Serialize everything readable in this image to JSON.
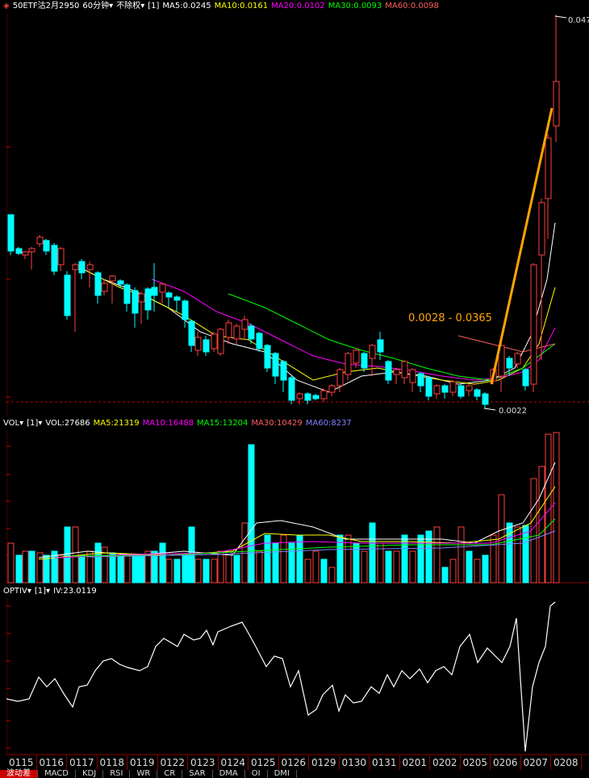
{
  "main_header": {
    "symbol": "50ETF沽2月2950",
    "period": "60分钟",
    "adjust": "不除权",
    "param": "[1]",
    "ma5": "MA5:0.0245",
    "ma10": "MA10:0.0161",
    "ma20": "MA20:0.0102",
    "ma30": "MA30:0.0093",
    "ma60": "MA60:0.0098"
  },
  "main_chart": {
    "high_label": "0.047",
    "low_label": "0.0022",
    "annotation": "0.0028 - 0.0365"
  },
  "vol_header": {
    "name": "VOL",
    "param": "[1]",
    "vol": "VOL:27686",
    "ma5": "MA5:21319",
    "ma10": "MA10:16488",
    "ma15": "MA15:13204",
    "ma30": "MA30:10429",
    "ma60": "MA60:8237"
  },
  "iv_header": {
    "name": "OPTIV",
    "param": "[1]",
    "iv": "IV:23.0119"
  },
  "xaxis": [
    "0115",
    "0116",
    "0117",
    "0118",
    "0119",
    "0122",
    "0123",
    "0124",
    "0125",
    "0126",
    "0129",
    "0130",
    "0131",
    "0201",
    "0202",
    "0205",
    "0206",
    "0207",
    "0208"
  ],
  "tabs": [
    "波动差",
    "MACD",
    "KDJ",
    "RSI",
    "WR",
    "CR",
    "SAR",
    "DMA",
    "OI",
    "DMI"
  ],
  "colors": {
    "up": "#ff4040",
    "down": "#00ffff",
    "ma5": "#ffffff",
    "ma10": "#ffff00",
    "ma20": "#ff00ff",
    "ma30": "#00ff00",
    "ma60": "#ff6060",
    "annot": "#ffa500"
  }
}
